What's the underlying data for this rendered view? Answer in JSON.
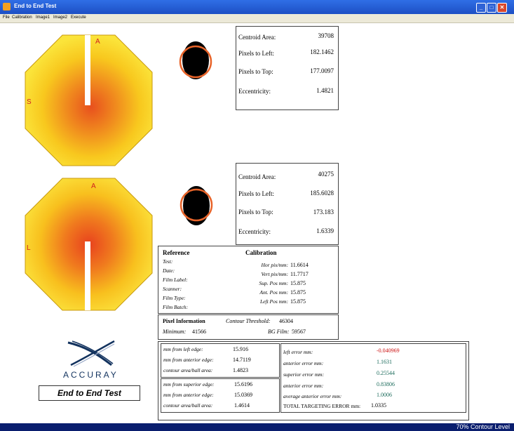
{
  "window": {
    "title": "End to End Test"
  },
  "menu": [
    "File",
    "Calibration",
    "Image1",
    "Image2",
    "Execute"
  ],
  "film_marks": {
    "top_film": [
      "A",
      "S"
    ],
    "bottom_film": [
      "A",
      "L"
    ]
  },
  "image1_stats": {
    "labels": [
      "Centroid Area:",
      "Pixels to Left:",
      "Pixels to Top:",
      "Eccentricity:"
    ],
    "values": [
      "39708",
      "182.1462",
      "177.0097",
      "1.4821"
    ]
  },
  "image2_stats": {
    "labels": [
      "Centroid Area:",
      "Pixels to Left:",
      "Pixels to Top:",
      "Eccentricity:"
    ],
    "values": [
      "40275",
      "185.6028",
      "173.183",
      "1.6339"
    ]
  },
  "reference": {
    "title": "Reference",
    "labels": [
      "Test:",
      "Date:",
      "Film Label:",
      "Scanner:",
      "Film Type:",
      "Film Batch:"
    ]
  },
  "calibration": {
    "title": "Calibration",
    "labels": [
      "Hor pix/mm:",
      "Vert pix/mm:",
      "Sup. Pos mm:",
      "Ant. Pos mm:",
      "Left Pos mm:"
    ],
    "values": [
      "11.6614",
      "11.7717",
      "15.875",
      "15.875",
      "15.875"
    ]
  },
  "pixel_info": {
    "title": "Pixel Information",
    "contour_label": "Contour Threshold:",
    "contour_value": "46304",
    "minimum_label": "Minimum:",
    "minimum_value": "41566",
    "bg_label": "BG Film:",
    "bg_value": "59567"
  },
  "measure1": {
    "labels": [
      "mm from left edge:",
      "mm from anterior edge:",
      "contour area/ball area:"
    ],
    "values": [
      "15.916",
      "14.7119",
      "1.4823"
    ]
  },
  "measure2": {
    "labels": [
      "mm from superior edge:",
      "mm from anterior edge:",
      "contour area/ball area:"
    ],
    "values": [
      "15.6196",
      "15.0369",
      "1.4614"
    ]
  },
  "errors": {
    "labels": [
      "left error mm:",
      "anterior error mm:",
      "superior error mm:",
      "anterior error mm:",
      "average anterior error mm:",
      "TOTAL TARGETING ERROR mm:"
    ],
    "values": [
      "-0.040969",
      "1.1631",
      "0.25544",
      "0.83806",
      "1.0006",
      "1.0335"
    ],
    "colors": [
      "#cc1111",
      "#1a6a5a",
      "#1a6a5a",
      "#1a6a5a",
      "#1a6a5a",
      "#000000"
    ]
  },
  "logo": {
    "text": "ACCURAY"
  },
  "button": {
    "label": "End to End Test"
  },
  "status": {
    "text": "70% Contour Level"
  }
}
